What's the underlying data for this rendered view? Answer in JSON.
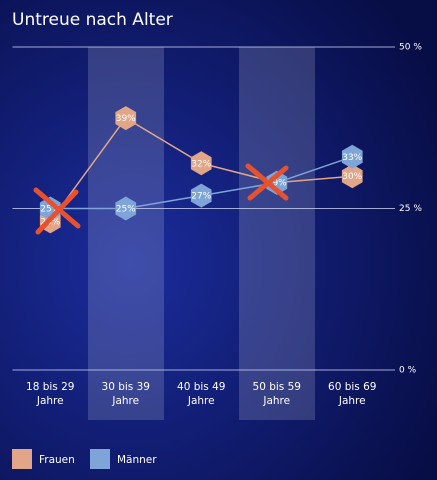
{
  "chart_data": {
    "type": "line",
    "title": "Untreue nach Alter",
    "categories": [
      "18 bis 29 Jahre",
      "30 bis 39 Jahre",
      "40 bis 49 Jahre",
      "50 bis 59 Jahre",
      "60 bis 69 Jahre"
    ],
    "series": [
      {
        "name": "Frauen",
        "color": "#e3a587",
        "values": [
          23,
          39,
          32,
          29,
          30
        ],
        "value_labels": [
          "23%",
          "39%",
          "32%",
          "29%",
          "30%"
        ]
      },
      {
        "name": "Männer",
        "color": "#7fa4d8",
        "values": [
          25,
          25,
          27,
          29,
          33
        ],
        "value_labels": [
          "25%",
          "25%",
          "27%",
          "29%",
          "33%"
        ]
      }
    ],
    "ylim": [
      0,
      50
    ],
    "yticks": [
      {
        "value": 0,
        "label": "0 %"
      },
      {
        "value": 25,
        "label": "25 %"
      },
      {
        "value": 50,
        "label": "50 %"
      }
    ],
    "grid": true
  }
}
